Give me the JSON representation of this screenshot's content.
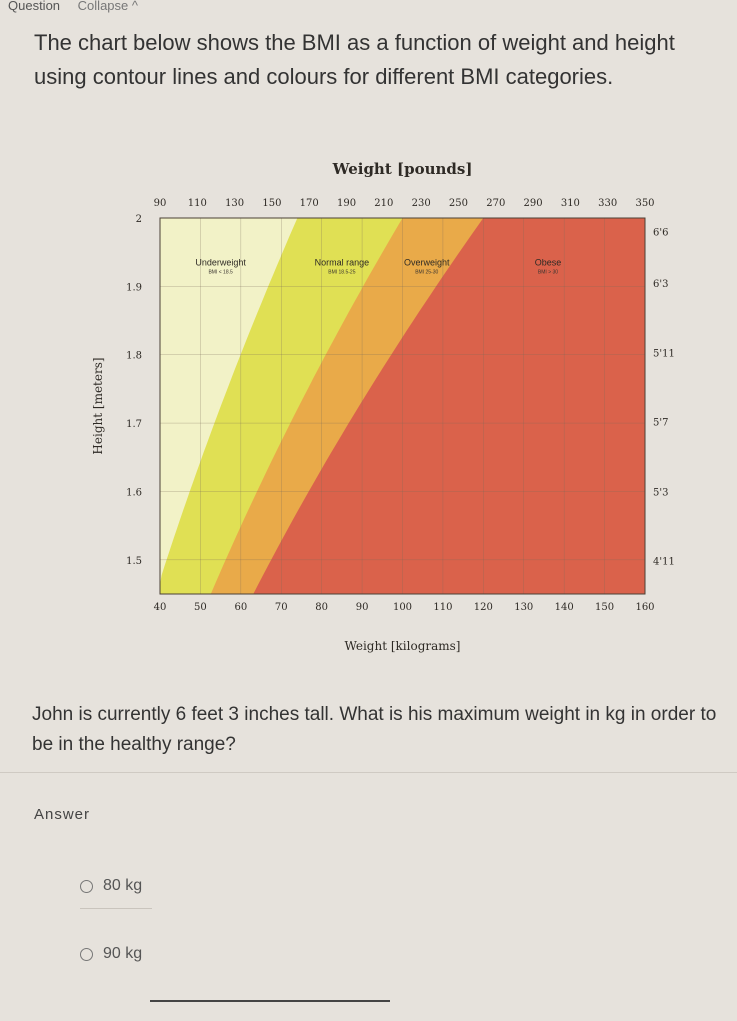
{
  "header": {
    "question_label": "Question",
    "collapse_label": "Collapse ^"
  },
  "question_text": "The chart below shows the BMI as a function of weight and height using contour lines and colours for different BMI categories.",
  "chart_data": {
    "type": "area",
    "title": "Weight [pounds]",
    "xlabel": "Weight [kilograms]",
    "ylabel": "Height [meters]",
    "x_bottom_ticks": [
      "40",
      "50",
      "60",
      "70",
      "80",
      "90",
      "100",
      "110",
      "120",
      "130",
      "140",
      "150",
      "160"
    ],
    "x_top_ticks": [
      "90",
      "110",
      "130",
      "150",
      "170",
      "190",
      "210",
      "230",
      "250",
      "270",
      "290",
      "310",
      "330",
      "350"
    ],
    "y_left_ticks": [
      "2",
      "1.9",
      "1.8",
      "1.7",
      "1.6",
      "1.5"
    ],
    "y_right_ticks": [
      "6'6",
      "6'3",
      "5'11",
      "5'7",
      "5'3",
      "4'11"
    ],
    "xlim": [
      40,
      160
    ],
    "ylim": [
      1.45,
      2.0
    ],
    "regions": [
      {
        "name": "Underweight",
        "sub": "BMI < 18.5",
        "bmi_range": [
          0,
          18.5
        ],
        "color": "#f2f2c7"
      },
      {
        "name": "Normal range",
        "sub": "BMI 18.5-25",
        "bmi_range": [
          18.5,
          25
        ],
        "color": "#dede4e"
      },
      {
        "name": "Overweight",
        "sub": "BMI 25-30",
        "bmi_range": [
          25,
          30
        ],
        "color": "#e9a749"
      },
      {
        "name": "Obese",
        "sub": "BMI > 30",
        "bmi_range": [
          30,
          100
        ],
        "color": "#d95e4c"
      }
    ]
  },
  "followup_text": "John is currently 6 feet 3 inches tall. What is his maximum weight in kg in order to be in the healthy range?",
  "answer_label": "Answer",
  "options": [
    {
      "label": "80 kg"
    },
    {
      "label": "90 kg"
    }
  ]
}
